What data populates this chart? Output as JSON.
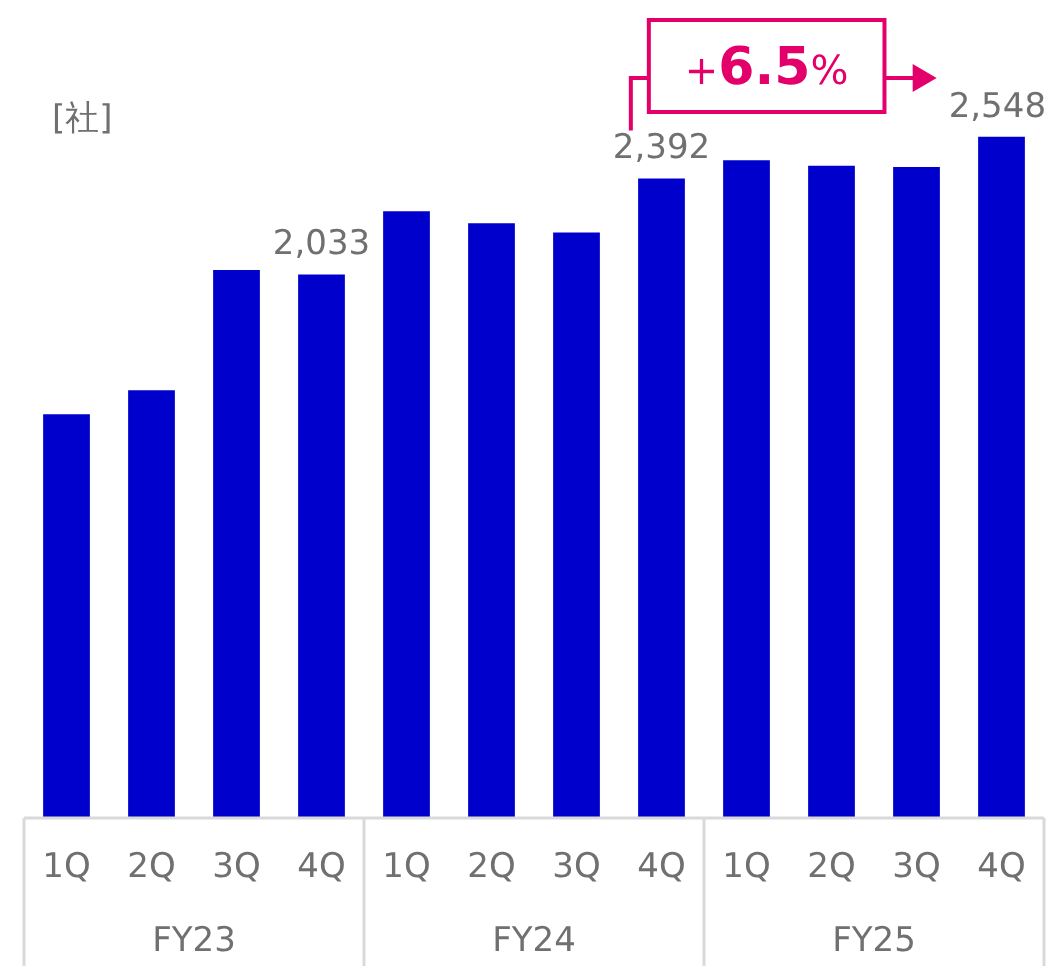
{
  "chart_data": {
    "type": "bar",
    "ylabel": "[社]",
    "categories": [
      "1Q",
      "2Q",
      "3Q",
      "4Q",
      "1Q",
      "2Q",
      "3Q",
      "4Q",
      "1Q",
      "2Q",
      "3Q",
      "4Q"
    ],
    "values": [
      1510,
      1600,
      2050,
      2033,
      2270,
      2225,
      2190,
      2392,
      2460,
      2440,
      2435,
      2548
    ],
    "color": "#0000cc",
    "value_labels": [
      null,
      null,
      null,
      "2,033",
      null,
      null,
      null,
      "2,392",
      null,
      null,
      null,
      "2,548"
    ],
    "annotations": [
      "FY23",
      "FY24",
      "FY25",
      "+6.5%"
    ],
    "legend": false
  }
}
